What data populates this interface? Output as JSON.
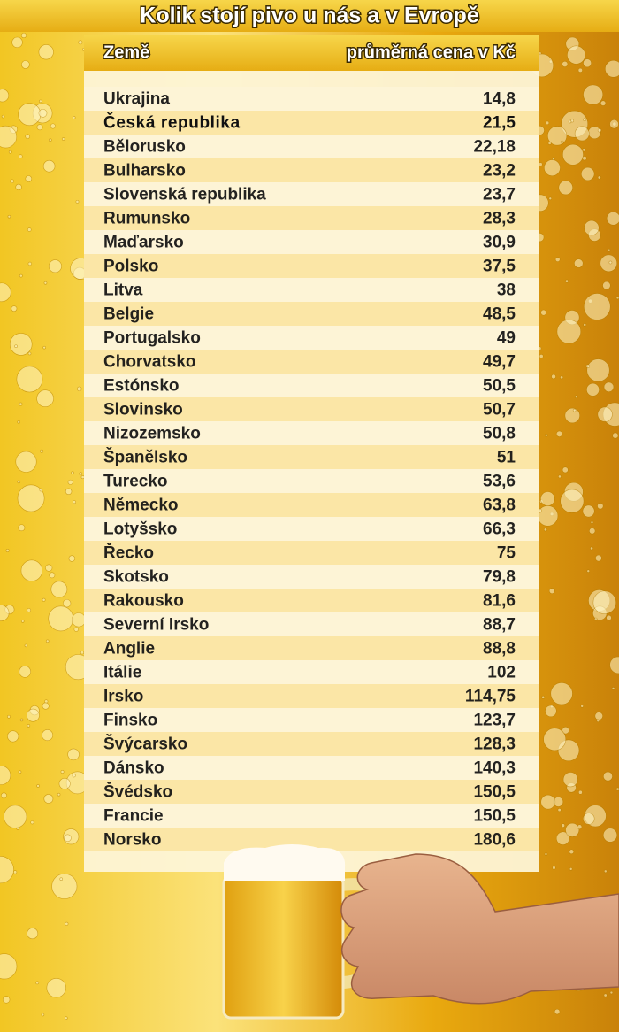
{
  "header": {
    "title": "Kolik stojí pivo u nás a v Evropě"
  },
  "table": {
    "columns": [
      "Země",
      "průměrná cena v Kč"
    ],
    "rows": [
      {
        "country": "Ukrajina",
        "price": "14,8"
      },
      {
        "country": "Česká republika",
        "price": "21,5",
        "bold": true
      },
      {
        "country": "Bělorusko",
        "price": "22,18"
      },
      {
        "country": "Bulharsko",
        "price": "23,2"
      },
      {
        "country": "Slovenská republika",
        "price": "23,7"
      },
      {
        "country": "Rumunsko",
        "price": "28,3"
      },
      {
        "country": "Maďarsko",
        "price": "30,9"
      },
      {
        "country": "Polsko",
        "price": "37,5"
      },
      {
        "country": "Litva",
        "price": "38"
      },
      {
        "country": "Belgie",
        "price": "48,5"
      },
      {
        "country": "Portugalsko",
        "price": "49"
      },
      {
        "country": "Chorvatsko",
        "price": "49,7"
      },
      {
        "country": "Estónsko",
        "price": "50,5"
      },
      {
        "country": "Slovinsko",
        "price": "50,7"
      },
      {
        "country": "Nizozemsko",
        "price": "50,8"
      },
      {
        "country": "Španělsko",
        "price": "51"
      },
      {
        "country": "Turecko",
        "price": "53,6"
      },
      {
        "country": "Německo",
        "price": "63,8"
      },
      {
        "country": "Lotyšsko",
        "price": "66,3"
      },
      {
        "country": "Řecko",
        "price": "75"
      },
      {
        "country": "Skotsko",
        "price": "79,8"
      },
      {
        "country": "Rakousko",
        "price": "81,6"
      },
      {
        "country": "Severní Irsko",
        "price": "88,7"
      },
      {
        "country": "Anglie",
        "price": "88,8"
      },
      {
        "country": "Itálie",
        "price": "102"
      },
      {
        "country": "Irsko",
        "price": "114,75"
      },
      {
        "country": "Finsko",
        "price": "123,7"
      },
      {
        "country": "Švýcarsko",
        "price": "128,3"
      },
      {
        "country": "Dánsko",
        "price": "140,3"
      },
      {
        "country": "Švédsko",
        "price": "150,5"
      },
      {
        "country": "Francie",
        "price": "150,5"
      },
      {
        "country": "Norsko",
        "price": "180,6"
      }
    ]
  }
}
